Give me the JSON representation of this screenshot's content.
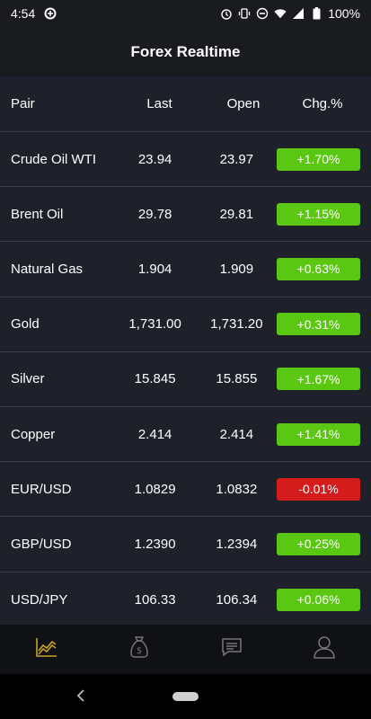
{
  "status_bar": {
    "time": "4:54",
    "battery": "100%",
    "icons": [
      "data-saver-icon",
      "alarm-icon",
      "vibrate-icon",
      "do-not-disturb-icon",
      "wifi-icon",
      "signal-icon",
      "battery-icon"
    ]
  },
  "header": {
    "title": "Forex Realtime"
  },
  "table": {
    "columns": [
      "Pair",
      "Last",
      "Open",
      "Chg.%"
    ],
    "rows": [
      {
        "pair": "Crude Oil WTI",
        "last": "23.94",
        "open": "23.97",
        "chg": "+1.70%",
        "dir": "up"
      },
      {
        "pair": "Brent Oil",
        "last": "29.78",
        "open": "29.81",
        "chg": "+1.15%",
        "dir": "up"
      },
      {
        "pair": "Natural Gas",
        "last": "1.904",
        "open": "1.909",
        "chg": "+0.63%",
        "dir": "up"
      },
      {
        "pair": "Gold",
        "last": "1,731.00",
        "open": "1,731.20",
        "chg": "+0.31%",
        "dir": "up"
      },
      {
        "pair": "Silver",
        "last": "15.845",
        "open": "15.855",
        "chg": "+1.67%",
        "dir": "up"
      },
      {
        "pair": "Copper",
        "last": "2.414",
        "open": "2.414",
        "chg": "+1.41%",
        "dir": "up"
      },
      {
        "pair": "EUR/USD",
        "last": "1.0829",
        "open": "1.0832",
        "chg": "-0.01%",
        "dir": "down"
      },
      {
        "pair": "GBP/USD",
        "last": "1.2390",
        "open": "1.2394",
        "chg": "+0.25%",
        "dir": "up"
      },
      {
        "pair": "USD/JPY",
        "last": "106.33",
        "open": "106.34",
        "chg": "+0.06%",
        "dir": "up"
      }
    ]
  },
  "bottom_nav": {
    "items": [
      {
        "icon": "chart-icon",
        "active": true
      },
      {
        "icon": "money-bag-icon",
        "active": false
      },
      {
        "icon": "news-icon",
        "active": false
      },
      {
        "icon": "profile-icon",
        "active": false
      }
    ]
  },
  "colors": {
    "positive": "#5ac712",
    "negative": "#d51c1c",
    "accent": "#c9a227",
    "background": "#1e212a"
  }
}
